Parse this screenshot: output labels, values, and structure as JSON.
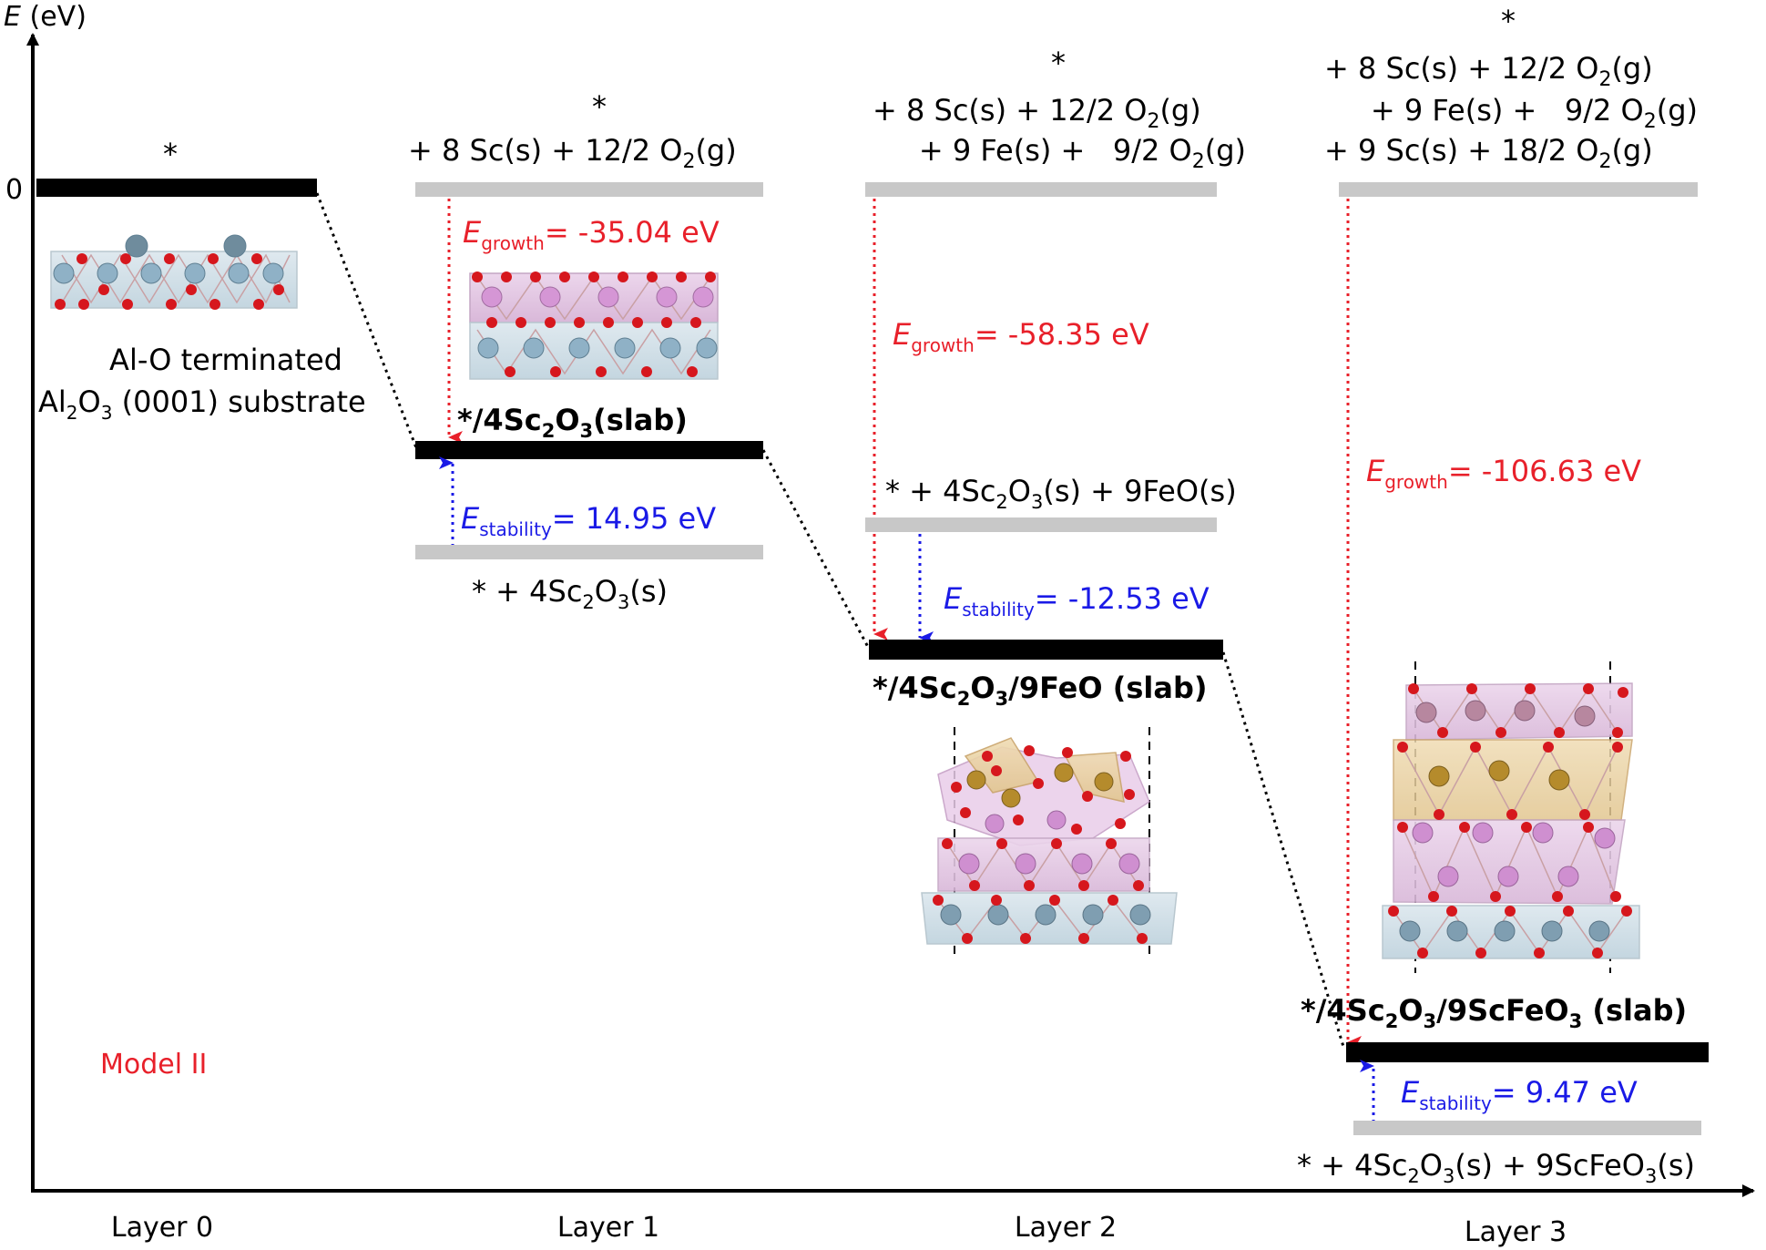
{
  "axis": {
    "y_label_italic": "E",
    "y_label_rest": " (eV)",
    "zero_tick": "0"
  },
  "layers": [
    "Layer 0",
    "Layer 1",
    "Layer 2",
    "Layer 3"
  ],
  "model_label": "Model II",
  "layer0": {
    "star": "*",
    "substrate_line1": "Al-O terminated",
    "substrate_line2_pre": "Al",
    "substrate_line2_mid": "O",
    "substrate_line2_post": " (0001) substrate",
    "sub2": "2",
    "sub3": "3"
  },
  "layer1": {
    "ref_star": "*",
    "ref_line": "+ 8 Sc(s) + 12/2 O",
    "ref_line_end": "(g)",
    "slab_pre": "*/4Sc",
    "slab_mid": "O",
    "slab_post": "(slab)",
    "growth_sym": "E",
    "growth_sub": "growth",
    "growth_val": "= -35.04 eV",
    "stab_sym": "E",
    "stab_sub": "stability",
    "stab_val": "= 14.95 eV",
    "bulk_pre": "* + 4Sc",
    "bulk_mid": "O",
    "bulk_post": "(s)"
  },
  "layer2": {
    "ref_star": "*",
    "ref_line1": "+ 8 Sc(s) + 12/2 O",
    "ref_line2": "+ 9 Fe(s) +   9/2 O",
    "ref_end": "(g)",
    "growth_sym": "E",
    "growth_sub": "growth",
    "growth_val": "= -58.35 eV",
    "bulk_pre": "* + 4Sc",
    "bulk_mid": "O",
    "bulk_post": "(s) + 9FeO(s)",
    "stab_sym": "E",
    "stab_sub": "stability",
    "stab_val": "= -12.53 eV",
    "slab_pre": "*/4Sc",
    "slab_mid": "O",
    "slab_post": "/9FeO (slab)"
  },
  "layer3": {
    "ref_star": "*",
    "ref_line1": "+ 8 Sc(s) + 12/2 O",
    "ref_line2": "+ 9 Fe(s) +   9/2 O",
    "ref_line3": "+ 9 Sc(s) + 18/2 O",
    "ref_end": "(g)",
    "growth_sym": "E",
    "growth_sub": "growth",
    "growth_val": "= -106.63 eV",
    "slab_pre": "*/4Sc",
    "slab_mid": "O",
    "slab_mid2": "/9ScFeO",
    "slab_post": " (slab)",
    "stab_sym": "E",
    "stab_sub": "stability",
    "stab_val": "= 9.47 eV",
    "bulk_pre": "* + 4Sc",
    "bulk_mid": "O",
    "bulk_mid2": "(s) + 9ScFeO",
    "bulk_post": "(s)"
  },
  "colors": {
    "growth": "#e8202a",
    "stability": "#1a1ae6",
    "slab_bar": "#000000",
    "ref_bar": "#c8c8c8",
    "model": "#e8202a"
  },
  "structures": [
    "layer0-structure",
    "layer1-structure",
    "layer2-structure",
    "layer3-structure"
  ]
}
